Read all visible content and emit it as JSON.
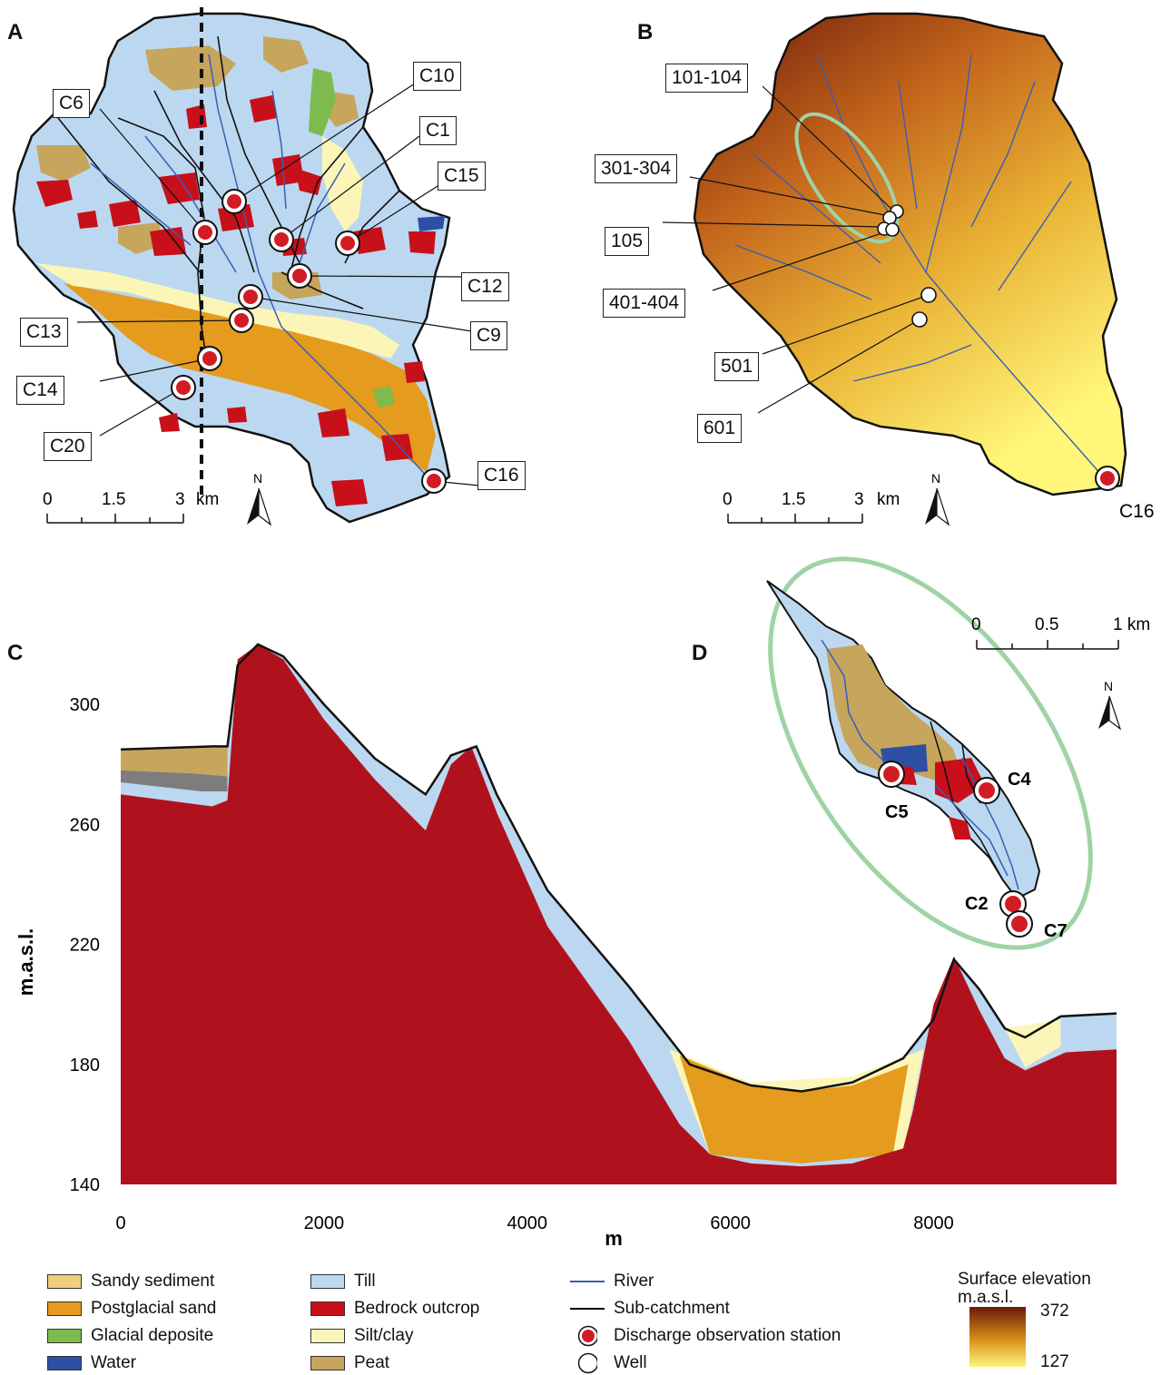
{
  "panels": {
    "a": {
      "letter": "A"
    },
    "b": {
      "letter": "B"
    },
    "c": {
      "letter": "C"
    },
    "d": {
      "letter": "D"
    }
  },
  "panel_a": {
    "stations": [
      "C10",
      "C6",
      "C1",
      "C15",
      "C12",
      "C9",
      "C13",
      "C14",
      "C20",
      "C16"
    ],
    "scalebar": {
      "ticks": [
        "0",
        "1.5",
        "3"
      ],
      "unit": "km"
    },
    "north": "N"
  },
  "panel_b": {
    "wells": [
      "101-104",
      "301-304",
      "105",
      "401-404",
      "501",
      "601"
    ],
    "station": "C16",
    "scalebar": {
      "ticks": [
        "0",
        "1.5",
        "3"
      ],
      "unit": "km"
    },
    "north": "N"
  },
  "panel_d": {
    "stations": [
      "C5",
      "C4",
      "C2",
      "C7"
    ],
    "scalebar": {
      "ticks": [
        "0",
        "0.5",
        "1 km"
      ]
    },
    "north": "N"
  },
  "chart_data": {
    "type": "area",
    "xlabel": "m",
    "ylabel": "m.a.s.l.",
    "xlim": [
      0,
      9800
    ],
    "ylim": [
      140,
      320
    ],
    "xticks": [
      "0",
      "2000",
      "4000",
      "6000",
      "8000"
    ],
    "yticks": [
      "140",
      "180",
      "220",
      "260",
      "300"
    ],
    "surface_profile": {
      "x": [
        0,
        900,
        1050,
        1150,
        1350,
        1600,
        2000,
        2500,
        3000,
        3250,
        3500,
        3700,
        4200,
        5000,
        5600,
        6200,
        6700,
        7200,
        7700,
        8000,
        8200,
        8450,
        8700,
        8900,
        9250,
        9800
      ],
      "y": [
        285,
        286,
        286,
        313,
        320,
        316,
        300,
        282,
        270,
        283,
        286,
        270,
        238,
        206,
        180,
        173,
        171,
        174,
        182,
        195,
        215,
        205,
        192,
        189,
        196,
        197
      ]
    },
    "bedrock_profile": {
      "x": [
        0,
        900,
        1050,
        1150,
        1350,
        1600,
        2000,
        2500,
        3000,
        3250,
        3450,
        3700,
        4200,
        5000,
        5500,
        5800,
        6200,
        6700,
        7200,
        7700,
        7800,
        8000,
        8200,
        8450,
        8700,
        8900,
        9300,
        9800
      ],
      "y": [
        270,
        266,
        268,
        315,
        320,
        315,
        295,
        275,
        258,
        280,
        286,
        264,
        226,
        188,
        160,
        150,
        147,
        146,
        147,
        152,
        165,
        200,
        216,
        198,
        182,
        178,
        184,
        185
      ]
    },
    "units_shown": [
      "Sandy sediment",
      "Postglacial sand",
      "Glacial deposite",
      "Till",
      "Bedrock outcrop",
      "Silt/clay",
      "Peat"
    ]
  },
  "legend": {
    "geology": [
      {
        "label": "Sandy sediment",
        "color": "#f0cf7c"
      },
      {
        "label": "Postglacial sand",
        "color": "#e49b1e"
      },
      {
        "label": "Glacial deposite",
        "color": "#7dbb4f"
      },
      {
        "label": "Water",
        "color": "#2d4fa4"
      },
      {
        "label": "Till",
        "color": "#bcd8f0"
      },
      {
        "label": "Bedrock outcrop",
        "color": "#c8101a"
      },
      {
        "label": "Silt/clay",
        "color": "#fbf6b8"
      },
      {
        "label": "Peat",
        "color": "#c6a55c"
      }
    ],
    "symbols": [
      {
        "label": "River",
        "color": "#3b5db5"
      },
      {
        "label": "Sub-catchment",
        "color": "#000000"
      },
      {
        "label": "Discharge observation station",
        "color": "#d21c24"
      },
      {
        "label": "Well",
        "color": "#ffffff"
      }
    ],
    "elevation": {
      "title_line1": "Surface elevation",
      "title_line2": "m.a.s.l.",
      "max": "372",
      "min": "127",
      "color_high": "#6b1a0a",
      "color_mid": "#d9901a",
      "color_low": "#fff67a"
    }
  }
}
